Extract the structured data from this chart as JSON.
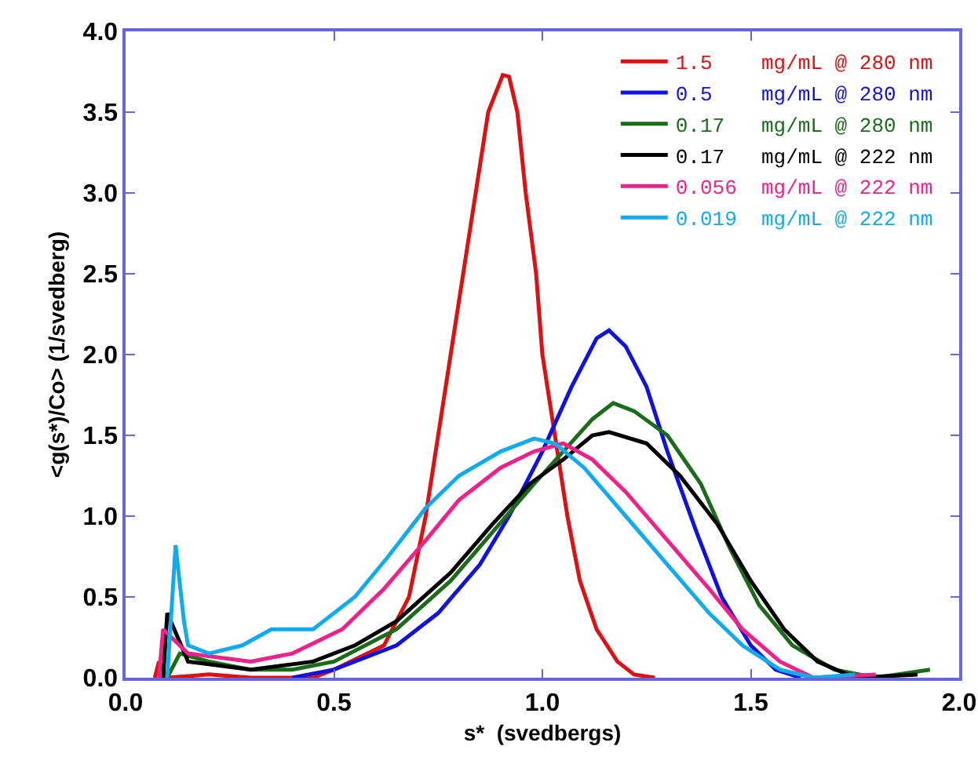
{
  "chart_data": {
    "type": "line",
    "xlabel": "s*  (svedbergs)",
    "ylabel": "<g(s*)/Co> (1/svedberg)",
    "xlim": [
      0,
      2
    ],
    "ylim": [
      0,
      4
    ],
    "xticks": [
      {
        "value": 0,
        "label": "0.0"
      },
      0.5,
      {
        "value": 1,
        "label": "1.0"
      },
      1.5,
      {
        "value": 2,
        "label": "2.0"
      }
    ],
    "yticks": [
      {
        "value": 0,
        "label": "0.0"
      },
      0.5,
      {
        "value": 1,
        "label": "1.0"
      },
      1.5,
      {
        "value": 2,
        "label": "2.0"
      },
      2.5,
      {
        "value": 3,
        "label": "3.0"
      },
      3.5,
      {
        "value": 4,
        "label": "4.0"
      }
    ],
    "grid": false,
    "legend": "top right",
    "marker": "none",
    "line_style": "solid",
    "series": [
      {
        "name": "1.5    mg/mL @ 280 nm",
        "color": "#dd1111",
        "x": [
          0.07,
          0.08,
          0.1,
          0.2,
          0.3,
          0.45,
          0.5,
          0.62,
          0.68,
          0.72,
          0.75,
          0.78,
          0.81,
          0.84,
          0.87,
          0.905,
          0.92,
          0.94,
          0.96,
          0.985,
          1.0,
          1.03,
          1.06,
          1.09,
          1.13,
          1.18,
          1.22,
          1.27
        ],
        "values": [
          0,
          0.1,
          0,
          0.02,
          0,
          0,
          0.05,
          0.2,
          0.5,
          1.0,
          1.5,
          2.0,
          2.5,
          3.0,
          3.5,
          3.73,
          3.72,
          3.5,
          3.0,
          2.5,
          2.0,
          1.5,
          1.0,
          0.6,
          0.3,
          0.1,
          0.02,
          0
        ]
      },
      {
        "name": "0.5    mg/mL @ 280 nm",
        "color": "#1111dd",
        "x": [
          0.4,
          0.5,
          0.65,
          0.75,
          0.85,
          0.92,
          1.0,
          1.07,
          1.13,
          1.16,
          1.2,
          1.25,
          1.3,
          1.37,
          1.43,
          1.5,
          1.56,
          1.62
        ],
        "values": [
          0,
          0.05,
          0.2,
          0.4,
          0.7,
          1.0,
          1.4,
          1.8,
          2.1,
          2.15,
          2.05,
          1.8,
          1.4,
          0.9,
          0.5,
          0.2,
          0.05,
          0
        ]
      },
      {
        "name": "0.17   mg/mL @ 280 nm",
        "color": "#1a6b1a",
        "x": [
          0.1,
          0.13,
          0.2,
          0.3,
          0.4,
          0.5,
          0.65,
          0.78,
          0.88,
          0.98,
          1.05,
          1.12,
          1.17,
          1.22,
          1.3,
          1.38,
          1.45,
          1.52,
          1.6,
          1.7,
          1.8,
          1.93
        ],
        "values": [
          0,
          0.15,
          0.1,
          0.05,
          0.05,
          0.1,
          0.3,
          0.6,
          0.9,
          1.2,
          1.4,
          1.6,
          1.7,
          1.65,
          1.5,
          1.2,
          0.8,
          0.45,
          0.2,
          0.05,
          0,
          0.05
        ]
      },
      {
        "name": "0.17   mg/mL @ 222 nm",
        "color": "#000000",
        "x": [
          0.09,
          0.1,
          0.15,
          0.3,
          0.45,
          0.55,
          0.65,
          0.78,
          0.88,
          0.97,
          1.05,
          1.12,
          1.16,
          1.25,
          1.33,
          1.42,
          1.5,
          1.58,
          1.66,
          1.75,
          1.9
        ],
        "values": [
          0,
          0.4,
          0.1,
          0.05,
          0.1,
          0.2,
          0.35,
          0.65,
          0.95,
          1.2,
          1.35,
          1.5,
          1.52,
          1.45,
          1.25,
          0.95,
          0.6,
          0.3,
          0.1,
          0,
          0.02
        ]
      },
      {
        "name": "0.056  mg/mL @ 222 nm",
        "color": "#ee2288",
        "x": [
          0.08,
          0.09,
          0.15,
          0.3,
          0.4,
          0.52,
          0.62,
          0.72,
          0.8,
          0.9,
          0.98,
          1.05,
          1.12,
          1.2,
          1.3,
          1.4,
          1.48,
          1.57,
          1.65,
          1.8
        ],
        "values": [
          0,
          0.3,
          0.15,
          0.1,
          0.15,
          0.3,
          0.55,
          0.85,
          1.1,
          1.3,
          1.4,
          1.45,
          1.35,
          1.15,
          0.85,
          0.55,
          0.3,
          0.1,
          0,
          0.02
        ]
      },
      {
        "name": "0.019  mg/mL @ 222 nm",
        "color": "#11aaee",
        "x": [
          0.1,
          0.12,
          0.14,
          0.15,
          0.2,
          0.28,
          0.35,
          0.45,
          0.55,
          0.63,
          0.72,
          0.8,
          0.9,
          0.98,
          1.03,
          1.1,
          1.2,
          1.3,
          1.4,
          1.48,
          1.57,
          1.65,
          1.75
        ],
        "values": [
          0,
          0.82,
          0.35,
          0.2,
          0.15,
          0.2,
          0.3,
          0.3,
          0.5,
          0.75,
          1.05,
          1.25,
          1.4,
          1.48,
          1.45,
          1.3,
          1.0,
          0.7,
          0.4,
          0.2,
          0.05,
          0,
          0.02
        ]
      }
    ]
  }
}
